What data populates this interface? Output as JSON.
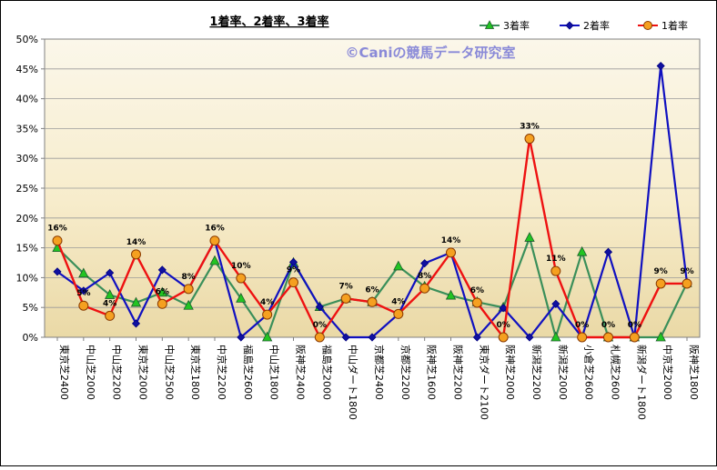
{
  "chart_data": {
    "type": "line",
    "title": "1着率、2着率、3着率",
    "watermark": "©Caniの競馬データ研究室",
    "xlabel": "",
    "ylabel": "",
    "ylim": [
      0,
      50
    ],
    "y_ticks": [
      "0%",
      "5%",
      "10%",
      "15%",
      "20%",
      "25%",
      "30%",
      "35%",
      "40%",
      "45%",
      "50%"
    ],
    "grid": true,
    "legend_position": "top-right",
    "categories": [
      "東京芝2400",
      "中山芝2000",
      "中山芝2200",
      "東京芝2000",
      "中山芝2500",
      "東京芝1800",
      "中京芝2200",
      "福島芝2600",
      "中山芝1800",
      "阪神芝2400",
      "福島芝2000",
      "中山ダート1800",
      "京都芝2400",
      "京都芝2200",
      "阪神芝1600",
      "阪神芝2200",
      "東京ダート2100",
      "阪神芝2000",
      "新潟芝2200",
      "新潟芝2000",
      "小倉芝2600",
      "札幌芝2600",
      "新潟ダート1800",
      "中京芝2000",
      "阪神芝1800"
    ],
    "series": [
      {
        "name": "3着率",
        "color": "#3a8f5a",
        "marker": "triangle",
        "marker_fill": "#22c422",
        "values": [
          15,
          10.7,
          7.1,
          5.8,
          7.5,
          5.3,
          12.8,
          6.5,
          0,
          12.5,
          5.1,
          6.5,
          5.9,
          11.9,
          8.5,
          7.0,
          5.9,
          5.0,
          16.7,
          0,
          14.3,
          0,
          0,
          0,
          9.1
        ]
      },
      {
        "name": "2着率",
        "color": "#1010c0",
        "marker": "diamond",
        "marker_fill": "#1010a0",
        "values": [
          11.0,
          7.8,
          10.8,
          2.3,
          11.3,
          8.1,
          16.2,
          0,
          3.8,
          12.6,
          5.1,
          0,
          0,
          3.9,
          12.4,
          14.2,
          0,
          4.9,
          0,
          5.6,
          0,
          14.3,
          0,
          45.5,
          9.1
        ]
      },
      {
        "name": "1着率",
        "color": "#ee1111",
        "marker": "circle",
        "marker_fill": "#f5a020",
        "values": [
          16.2,
          5.3,
          3.6,
          13.9,
          5.6,
          8.1,
          16.2,
          9.9,
          3.8,
          9.2,
          0,
          6.5,
          5.9,
          3.9,
          8.2,
          14.2,
          5.8,
          0,
          33.3,
          11.1,
          0,
          0,
          0,
          9.0,
          9.0
        ]
      }
    ],
    "data_labels": [
      "16%",
      "5%",
      "4%",
      "14%",
      "6%",
      "8%",
      "16%",
      "10%",
      "4%",
      "9%",
      "0%",
      "7%",
      "6%",
      "4%",
      "8%",
      "14%",
      "6%",
      "0%",
      "33%",
      "11%",
      "0%",
      "0%",
      "0%",
      "9%",
      "9%"
    ]
  }
}
